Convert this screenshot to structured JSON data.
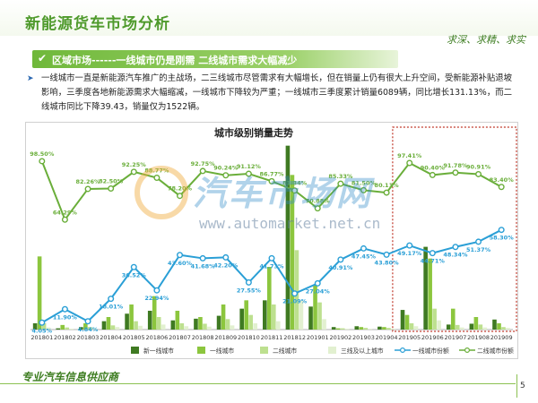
{
  "header": {
    "title": "新能源货车市场分析",
    "slogan": "求深、求精、求实"
  },
  "section": {
    "label": "区域市场------一线城市仍是刚需  二线城市需求大幅减少"
  },
  "paragraph": "一线城市一直是新能源汽车推广的主战场，二三线城市尽管需求有大幅增长，但在销量上仍有很大上升空间，受新能源补贴退坡影响，三季度各地新能源需求大幅缩减，一线城市下降较为严重；一线城市三季度累计销量6089辆，同比增长131.13%，而二线城市同比下降39.43，销量仅为1522辆。",
  "watermark": {
    "text": "汽车市场网",
    "url": "www.automarket.net.cn"
  },
  "footer": {
    "text": "专业汽车信息供应商",
    "page": "5"
  },
  "chart_data": {
    "type": "bar",
    "title": "城市级别销量走势",
    "categories": [
      "201801",
      "201802",
      "201803",
      "201804",
      "201805",
      "201806",
      "201807",
      "201808",
      "201809",
      "201810",
      "201811",
      "201812",
      "201901",
      "201902",
      "201903",
      "201904",
      "201905",
      "201906",
      "201907",
      "201908",
      "201909"
    ],
    "series": [
      {
        "name": "新一线城市",
        "kind": "bar",
        "color": "#3f7a22",
        "values": [
          150,
          30,
          60,
          200,
          380,
          450,
          220,
          260,
          330,
          500,
          700,
          4400,
          550,
          60,
          80,
          70,
          470,
          1980,
          120,
          140,
          240
        ]
      },
      {
        "name": "一线城市",
        "kind": "bar",
        "color": "#8cc63e",
        "values": [
          1750,
          110,
          150,
          300,
          600,
          800,
          450,
          300,
          600,
          700,
          1500,
          3700,
          1080,
          30,
          60,
          60,
          350,
          1700,
          500,
          300,
          150
        ]
      },
      {
        "name": "二线城市",
        "kind": "bar",
        "color": "#bde08f",
        "values": [
          150,
          50,
          60,
          100,
          200,
          300,
          150,
          140,
          250,
          350,
          600,
          1900,
          650,
          30,
          40,
          40,
          150,
          500,
          110,
          120,
          60
        ]
      },
      {
        "name": "三线及以上城市",
        "kind": "bar",
        "color": "#e2f0d0",
        "values": [
          50,
          20,
          30,
          60,
          90,
          120,
          80,
          70,
          100,
          150,
          200,
          700,
          250,
          20,
          20,
          20,
          80,
          220,
          50,
          50,
          40
        ]
      },
      {
        "name": "一线城市份额",
        "kind": "line",
        "color": "#2a9fd6",
        "values": [
          4.05,
          11.9,
          4.84,
          18.01,
          36.52,
          22.94,
          43.6,
          41.68,
          42.2,
          27.55,
          41.73,
          21.09,
          27.04,
          40.91,
          47.45,
          43.8,
          49.17,
          44.71,
          48.34,
          51.37,
          58.3
        ]
      },
      {
        "name": "二线城市份额",
        "kind": "line",
        "color": "#6aae3a",
        "values": [
          98.5,
          64.29,
          82.26,
          82.5,
          92.25,
          88.77,
          78.2,
          92.75,
          90.24,
          91.12,
          86.77,
          81.34,
          70.88,
          85.33,
          81.5,
          80.11,
          97.41,
          90.4,
          91.78,
          90.91,
          83.4
        ]
      }
    ],
    "share_labels": {
      "一线城市份额": [
        "4.05%",
        "11.90%",
        "4.84%",
        "18.01%",
        "36.52%",
        "22.94%",
        "43.60%",
        "41.68%",
        "42.20%",
        "27.55%",
        "41.73%",
        "21.09%",
        "27.04%",
        "40.91%",
        "47.45%",
        "43.80%",
        "49.17%",
        "44.71%",
        "48.34%",
        "51.37%",
        "58.30%"
      ],
      "二线城市份额": [
        "98.50%",
        "64.29%",
        "82.26%",
        "82.50%",
        "92.25%",
        "88.77%",
        "78.20%",
        "92.75%",
        "90.24%",
        "91.12%",
        "86.77%",
        "81.34%",
        "70.88%",
        "85.33%",
        "81.50%",
        "80.11%",
        "97.41%",
        "90.40%",
        "91.78%",
        "90.91%",
        "83.40%"
      ]
    },
    "highlight_range": [
      "201905",
      "201909"
    ],
    "highlight_color": "#c0392b",
    "bar_ylim": [
      0,
      4500
    ],
    "line_ylim": [
      0,
      110
    ],
    "legend_position": "bottom"
  }
}
